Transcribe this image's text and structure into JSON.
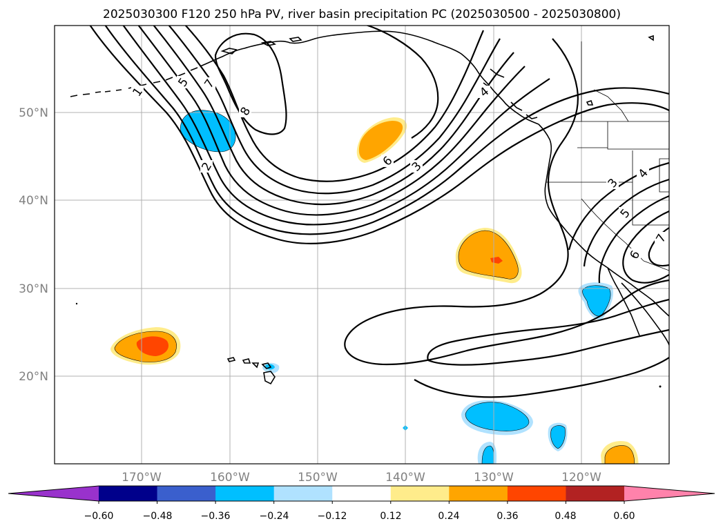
{
  "title": "2025030300 F120 250 hPa PV, river basin precipitation PC (2025030500 - 2025030800)",
  "latitude_labels": [
    "50°N",
    "40°N",
    "30°N",
    "20°N"
  ],
  "longitude_labels": [
    "170°W",
    "160°W",
    "150°W",
    "140°W",
    "130°W",
    "120°W"
  ],
  "contour_labels": [
    "1",
    "5",
    "7",
    "8",
    "2",
    "6",
    "3",
    "4",
    "3",
    "4",
    "5",
    "6",
    "7"
  ],
  "colorbar": {
    "tick_labels": [
      "−0.60",
      "−0.48",
      "−0.36",
      "−0.24",
      "−0.12",
      "0.12",
      "0.24",
      "0.36",
      "0.48",
      "0.60"
    ],
    "colors": [
      "#9932cc",
      "#00008b",
      "#3a5fcd",
      "#00bfff",
      "#b0e2ff",
      "#ffffff",
      "#ffec8b",
      "#ffa500",
      "#ff4500",
      "#b22222",
      "#ff82ab"
    ]
  }
}
